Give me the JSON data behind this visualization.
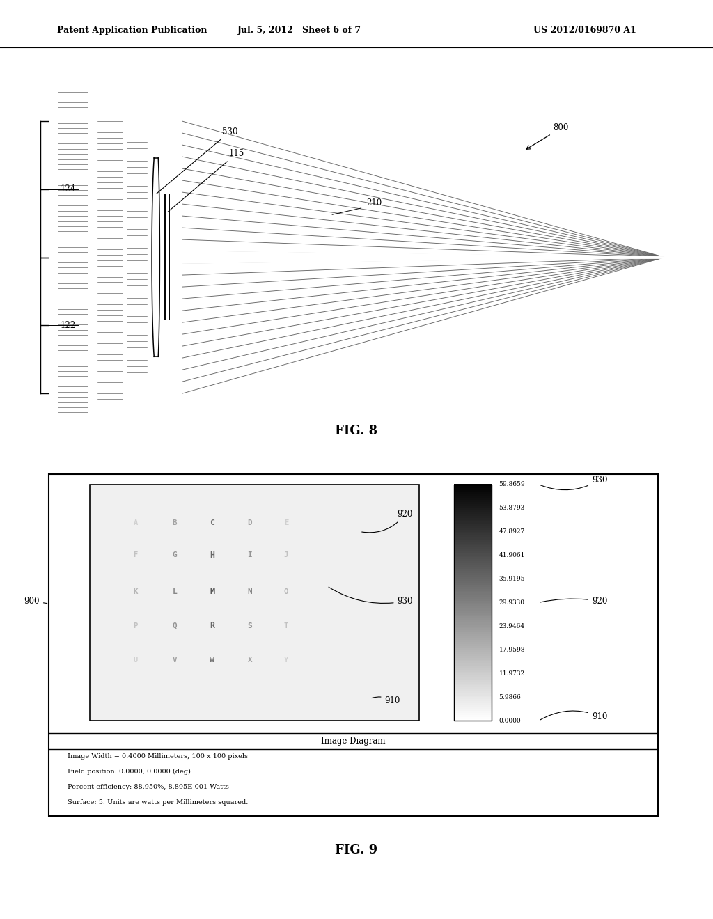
{
  "header_left": "Patent Application Publication",
  "header_center": "Jul. 5, 2012   Sheet 6 of 7",
  "header_right": "US 2012/0169870 A1",
  "fig8_label": "FIG. 8",
  "fig9_label": "FIG. 9",
  "fig9_title": "Image Diagram",
  "fig9_info_lines": [
    "Image Width = 0.4000 Millimeters, 100 x 100 pixels",
    "Field position: 0.0000, 0.0000 (deg)",
    "Percent efficiency: 88.950%, 8.895E-001 Watts",
    "Surface: 5. Units are watts per Millimeters squared."
  ],
  "colorbar_values": [
    "59.8659",
    "53.8793",
    "47.8927",
    "41.9061",
    "35.9195",
    "29.9330",
    "23.9464",
    "17.9598",
    "11.9732",
    "5.9866",
    "0.0000"
  ],
  "bg_color": "#ffffff",
  "line_color": "#000000",
  "gray_light": "#cccccc",
  "gray_dark": "#555555"
}
